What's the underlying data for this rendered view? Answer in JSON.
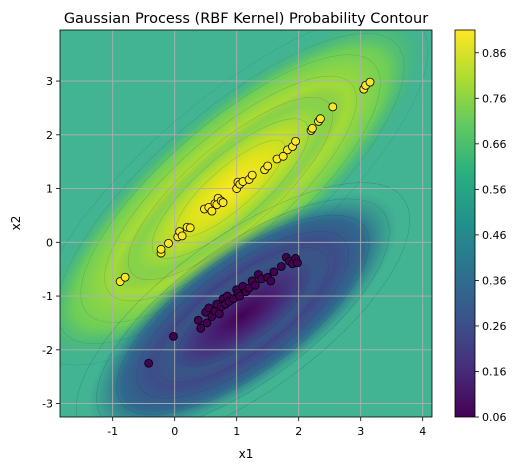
{
  "chart_data": {
    "type": "contour",
    "title": "Gaussian Process (RBF Kernel) Probability Contour",
    "xlabel": "x1",
    "ylabel": "x2",
    "xlim": [
      -1.85,
      4.15
    ],
    "ylim": [
      -3.25,
      3.95
    ],
    "xticks": [
      -1,
      0,
      1,
      2,
      3,
      4
    ],
    "yticks": [
      -3,
      -2,
      -1,
      0,
      1,
      2,
      3
    ],
    "grid": true,
    "colormap": "viridis",
    "colorbar": {
      "min": 0.06,
      "max": 0.91,
      "ticks": [
        "0.06",
        "0.16",
        "0.26",
        "0.36",
        "0.46",
        "0.56",
        "0.66",
        "0.76",
        "0.86"
      ]
    },
    "class_colors": {
      "class_1": "#fde725",
      "class_0": "#440154"
    },
    "points_class_1": [
      [
        -0.88,
        -0.73
      ],
      [
        -0.8,
        -0.65
      ],
      [
        -0.22,
        -0.2
      ],
      [
        -0.22,
        -0.13
      ],
      [
        -0.1,
        -0.02
      ],
      [
        0.05,
        0.1
      ],
      [
        0.08,
        0.2
      ],
      [
        0.12,
        0.12
      ],
      [
        0.2,
        0.28
      ],
      [
        0.25,
        0.27
      ],
      [
        0.48,
        0.62
      ],
      [
        0.55,
        0.65
      ],
      [
        0.6,
        0.58
      ],
      [
        0.65,
        0.72
      ],
      [
        0.7,
        0.82
      ],
      [
        0.68,
        0.7
      ],
      [
        0.75,
        0.77
      ],
      [
        0.78,
        0.74
      ],
      [
        1.0,
        1.0
      ],
      [
        1.02,
        1.12
      ],
      [
        1.05,
        1.08
      ],
      [
        1.1,
        1.13
      ],
      [
        1.2,
        1.17
      ],
      [
        1.25,
        1.25
      ],
      [
        1.45,
        1.35
      ],
      [
        1.5,
        1.42
      ],
      [
        1.65,
        1.55
      ],
      [
        1.75,
        1.6
      ],
      [
        1.82,
        1.72
      ],
      [
        1.9,
        1.78
      ],
      [
        1.95,
        1.88
      ],
      [
        2.2,
        2.08
      ],
      [
        2.22,
        2.12
      ],
      [
        2.32,
        2.25
      ],
      [
        2.35,
        2.3
      ],
      [
        2.55,
        2.52
      ],
      [
        3.05,
        2.85
      ],
      [
        3.08,
        2.92
      ],
      [
        3.15,
        2.98
      ]
    ],
    "points_class_0": [
      [
        -0.42,
        -2.25
      ],
      [
        -0.02,
        -1.75
      ],
      [
        0.38,
        -1.45
      ],
      [
        0.42,
        -1.6
      ],
      [
        0.5,
        -1.3
      ],
      [
        0.52,
        -1.5
      ],
      [
        0.55,
        -1.22
      ],
      [
        0.6,
        -1.38
      ],
      [
        0.65,
        -1.28
      ],
      [
        0.68,
        -1.15
      ],
      [
        0.72,
        -1.33
      ],
      [
        0.75,
        -1.2
      ],
      [
        0.78,
        -1.05
      ],
      [
        0.82,
        -1.15
      ],
      [
        0.85,
        -1.0
      ],
      [
        0.88,
        -1.1
      ],
      [
        0.95,
        -1.05
      ],
      [
        1.0,
        -0.88
      ],
      [
        1.02,
        -0.95
      ],
      [
        1.05,
        -1.0
      ],
      [
        1.1,
        -0.82
      ],
      [
        1.15,
        -0.92
      ],
      [
        1.2,
        -0.85
      ],
      [
        1.25,
        -0.72
      ],
      [
        1.3,
        -0.8
      ],
      [
        1.35,
        -0.6
      ],
      [
        1.4,
        -0.68
      ],
      [
        1.5,
        -0.65
      ],
      [
        1.55,
        -0.72
      ],
      [
        1.6,
        -0.55
      ],
      [
        1.72,
        -0.45
      ],
      [
        1.8,
        -0.28
      ],
      [
        1.85,
        -0.35
      ],
      [
        1.9,
        -0.4
      ],
      [
        1.95,
        -0.3
      ],
      [
        1.98,
        -0.38
      ]
    ]
  }
}
